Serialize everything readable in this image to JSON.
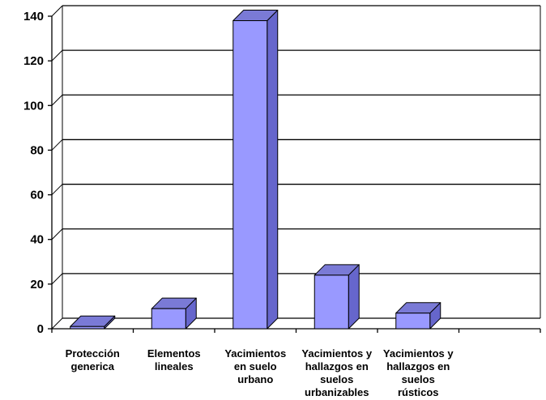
{
  "chart_data": {
    "type": "bar",
    "categories": [
      [
        "Protección",
        "generica"
      ],
      [
        "Elementos",
        "lineales"
      ],
      [
        "Yacimientos",
        "en suelo",
        "urbano"
      ],
      [
        "Yacimientos y",
        "hallazgos en",
        "suelos",
        "urbanizables"
      ],
      [
        "Yacimientos y",
        "hallazgos en",
        "suelos",
        "rústicos"
      ],
      []
    ],
    "values": [
      1,
      9,
      138,
      24,
      7,
      null
    ],
    "ylim": [
      0,
      140
    ],
    "yticks": [
      0,
      20,
      40,
      60,
      80,
      100,
      120,
      140
    ],
    "grid": true,
    "legend": "none",
    "style": "3d-bar",
    "colors": {
      "bar_front": "#9999ff",
      "bar_top": "#7a7ad6",
      "bar_side": "#6666cc",
      "bar_outline": "#000000",
      "grid": "#000000",
      "background": "#ffffff"
    }
  }
}
